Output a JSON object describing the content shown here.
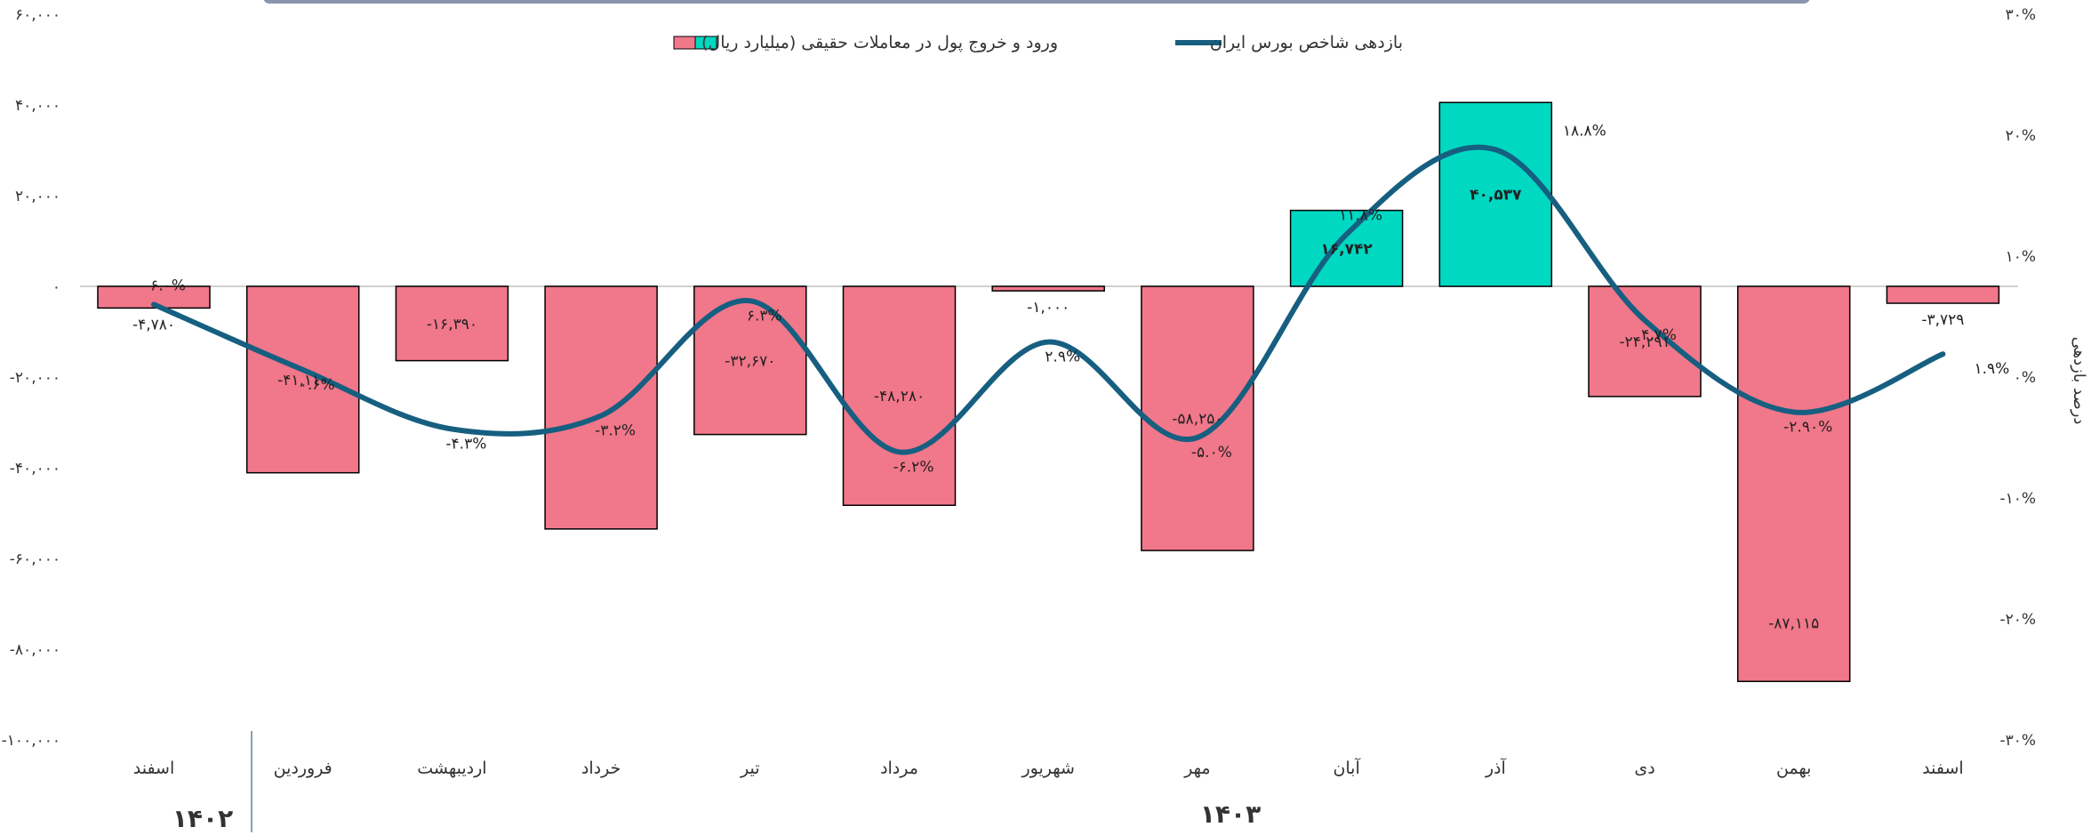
{
  "chart_data": {
    "type": "bar",
    "categories": [
      "اسفند",
      "فروردین",
      "اردیبهشت",
      "خرداد",
      "تیر",
      "مرداد",
      "شهریور",
      "مهر",
      "آبان",
      "آذر",
      "دی",
      "بهمن",
      "اسفند"
    ],
    "category_groups": [
      {
        "label": "۱۴۰۲",
        "count": 1
      },
      {
        "label": "۱۴۰۳",
        "count": 12
      }
    ],
    "series": [
      {
        "name": "ورود و خروج پول در معاملات حقیقی (میلیارد ریال)",
        "type": "bar",
        "axis": "left",
        "values": [
          -4780,
          -41110,
          -16390,
          -53500,
          -32670,
          -48280,
          -1000,
          -58250,
          16742,
          40537,
          -24291,
          -87115,
          -3729
        ],
        "labels": [
          "-۴,۷۸۰",
          "-۴۱,۱۱۰",
          "-۱۶,۳۹۰",
          "",
          "-۳۲,۶۷۰",
          "-۴۸,۲۸۰",
          "-۱,۰۰۰",
          "-۵۸,۲۵۰",
          "۱۶,۷۴۲",
          "۴۰,۵۳۷",
          "-۲۴,۲۹۱",
          "-۸۷,۱۱۵",
          "-۳,۷۲۹"
        ]
      },
      {
        "name": "بازدهی شاخص بورس ایران",
        "type": "line",
        "axis": "right",
        "values": [
          6.0,
          0.6,
          -4.3,
          -3.2,
          6.3,
          -6.2,
          2.9,
          -5.0,
          11.8,
          18.8,
          4.7,
          -2.9,
          1.9
        ],
        "labels": [
          "۶.۰%",
          "۰.۶%",
          "-۴.۳%",
          "-۳.۲%",
          "۶.۳%",
          "-۶.۲%",
          "۲.۹%",
          "-۵.۰%",
          "۱۱.۸%",
          "۱۸.۸%",
          "۴.۷%",
          "-۲.۹۰%",
          "۱.۹%"
        ]
      }
    ],
    "y_left": {
      "ylim": [
        -100000,
        60000
      ],
      "ticks": [
        60000,
        40000,
        20000,
        0,
        -20000,
        -40000,
        -60000,
        -80000,
        -100000
      ],
      "tick_labels": [
        "۶۰,۰۰۰",
        "۴۰,۰۰۰",
        "۲۰,۰۰۰",
        "۰",
        "-۲۰,۰۰۰",
        "-۴۰,۰۰۰",
        "-۶۰,۰۰۰",
        "-۸۰,۰۰۰",
        "-۱۰۰,۰۰۰"
      ]
    },
    "y_right": {
      "ylim": [
        -30,
        30
      ],
      "ticks": [
        30,
        20,
        10,
        0,
        -10,
        -20,
        -30
      ],
      "tick_labels": [
        "۳۰%",
        "۲۰%",
        "۱۰%",
        "۰%",
        "-۱۰%",
        "-۲۰%",
        "-۳۰%"
      ],
      "label": "درصد بازدهی"
    },
    "legend_position": "top",
    "colors": {
      "positive_bar": "#00D8C2",
      "negative_bar": "#F1778A",
      "line": "#165F80"
    }
  }
}
